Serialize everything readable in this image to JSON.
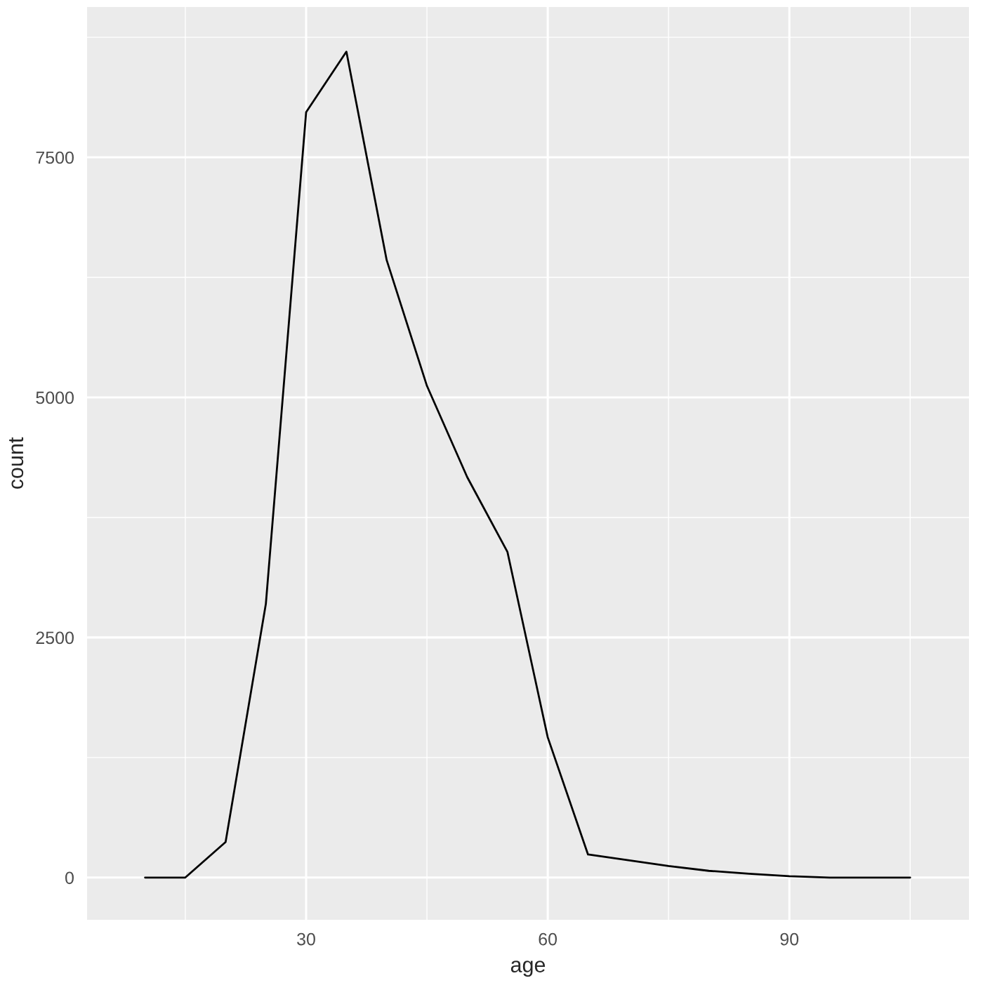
{
  "chart_data": {
    "type": "line",
    "xlabel": "age",
    "ylabel": "count",
    "x": [
      10,
      15,
      20,
      25,
      30,
      35,
      40,
      45,
      50,
      55,
      60,
      65,
      70,
      75,
      80,
      85,
      90,
      95,
      100,
      105
    ],
    "series": [
      {
        "color": "#000000",
        "values": [
          0,
          0,
          370,
          2850,
          7970,
          8600,
          6430,
          5120,
          4170,
          3390,
          1460,
          240,
          180,
          120,
          70,
          40,
          15,
          0,
          0,
          0
        ]
      }
    ],
    "xlim": [
      2.8,
      112.3
    ],
    "ylim": [
      -440,
      9065
    ],
    "xticks": [
      {
        "value": 15,
        "label": null
      },
      30,
      {
        "value": 45,
        "label": null
      },
      60,
      {
        "value": 75,
        "label": null
      },
      90,
      {
        "value": 105,
        "label": null
      }
    ],
    "yticks": [
      0,
      {
        "value": 1250,
        "label": null
      },
      2500,
      {
        "value": 3750,
        "label": null
      },
      5000,
      {
        "value": 6250,
        "label": null
      },
      7500,
      {
        "value": 8750,
        "label": null
      }
    ],
    "grid": true,
    "marker": "none",
    "line_style": "solid",
    "legend": false
  }
}
